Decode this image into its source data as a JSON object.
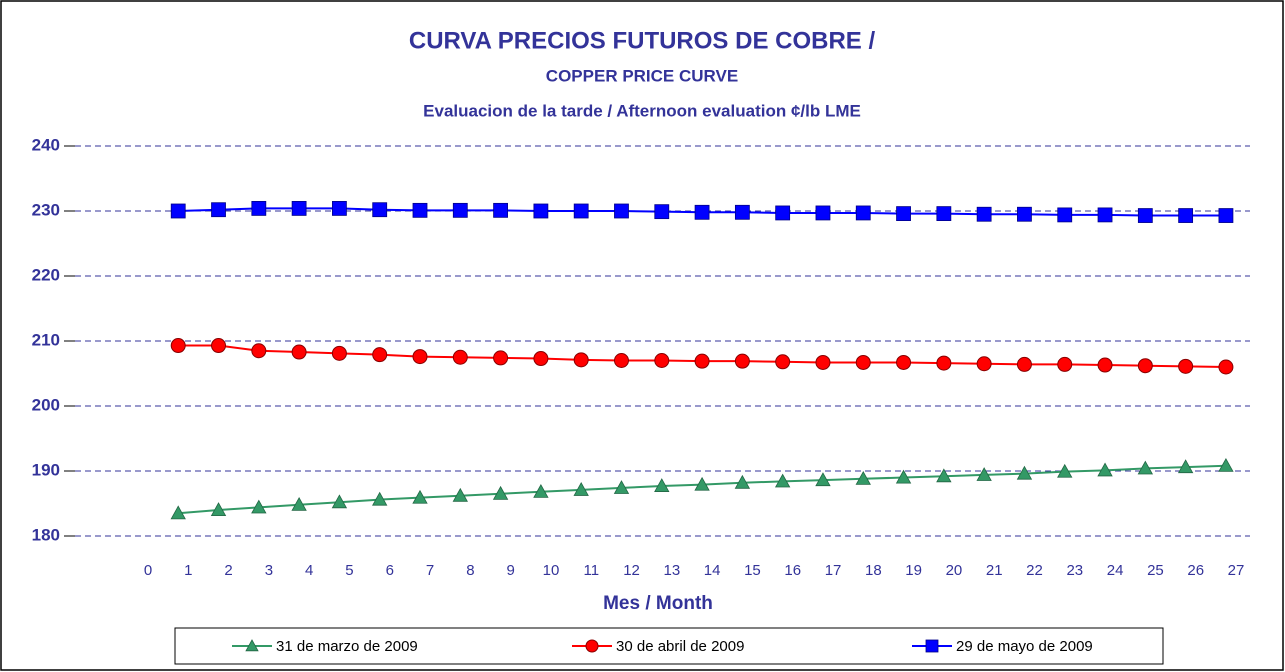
{
  "chart_data": {
    "type": "line",
    "title": "CURVA PRECIOS FUTUROS DE COBRE /",
    "subtitle": "COPPER PRICE CURVE",
    "subtitle2": "Evaluacion de la tarde / Afternoon evaluation ¢/lb LME",
    "xlabel": "Mes / Month",
    "x": [
      0.75,
      1.75,
      2.75,
      3.75,
      4.75,
      5.75,
      6.75,
      7.75,
      8.75,
      9.75,
      10.75,
      11.75,
      12.75,
      13.75,
      14.75,
      15.75,
      16.75,
      17.75,
      18.75,
      19.75,
      20.75,
      21.75,
      22.75,
      23.75,
      24.75,
      25.75,
      26.75
    ],
    "xlim": [
      0,
      27
    ],
    "xticks": [
      0,
      1,
      2,
      3,
      4,
      5,
      6,
      7,
      8,
      9,
      10,
      11,
      12,
      13,
      14,
      15,
      16,
      17,
      18,
      19,
      20,
      21,
      22,
      23,
      24,
      25,
      26,
      27
    ],
    "ylim": [
      180,
      240
    ],
    "yticks": [
      180,
      190,
      200,
      210,
      220,
      230,
      240
    ],
    "grid": true,
    "legend": "bottom",
    "series": [
      {
        "name": "31 de marzo de 2009",
        "color": "#339966",
        "marker": "triangle",
        "values": [
          183.5,
          184.0,
          184.4,
          184.8,
          185.2,
          185.6,
          185.9,
          186.2,
          186.5,
          186.8,
          187.1,
          187.4,
          187.7,
          187.9,
          188.2,
          188.4,
          188.6,
          188.8,
          189.0,
          189.2,
          189.4,
          189.6,
          189.9,
          190.1,
          190.4,
          190.6,
          190.8
        ]
      },
      {
        "name": "30 de abril de 2009",
        "color": "#ff0000",
        "marker": "circle",
        "values": [
          209.3,
          209.3,
          208.5,
          208.3,
          208.1,
          207.9,
          207.6,
          207.5,
          207.4,
          207.3,
          207.1,
          207.0,
          207.0,
          206.9,
          206.9,
          206.8,
          206.7,
          206.7,
          206.7,
          206.6,
          206.5,
          206.4,
          206.4,
          206.3,
          206.2,
          206.1,
          206.0
        ]
      },
      {
        "name": "29 de mayo de 2009",
        "color": "#0000ff",
        "marker": "square",
        "values": [
          230.0,
          230.2,
          230.4,
          230.4,
          230.4,
          230.2,
          230.1,
          230.1,
          230.1,
          230.0,
          230.0,
          230.0,
          229.9,
          229.8,
          229.8,
          229.7,
          229.7,
          229.7,
          229.6,
          229.6,
          229.5,
          229.5,
          229.4,
          229.4,
          229.3,
          229.3,
          229.3
        ]
      }
    ]
  }
}
